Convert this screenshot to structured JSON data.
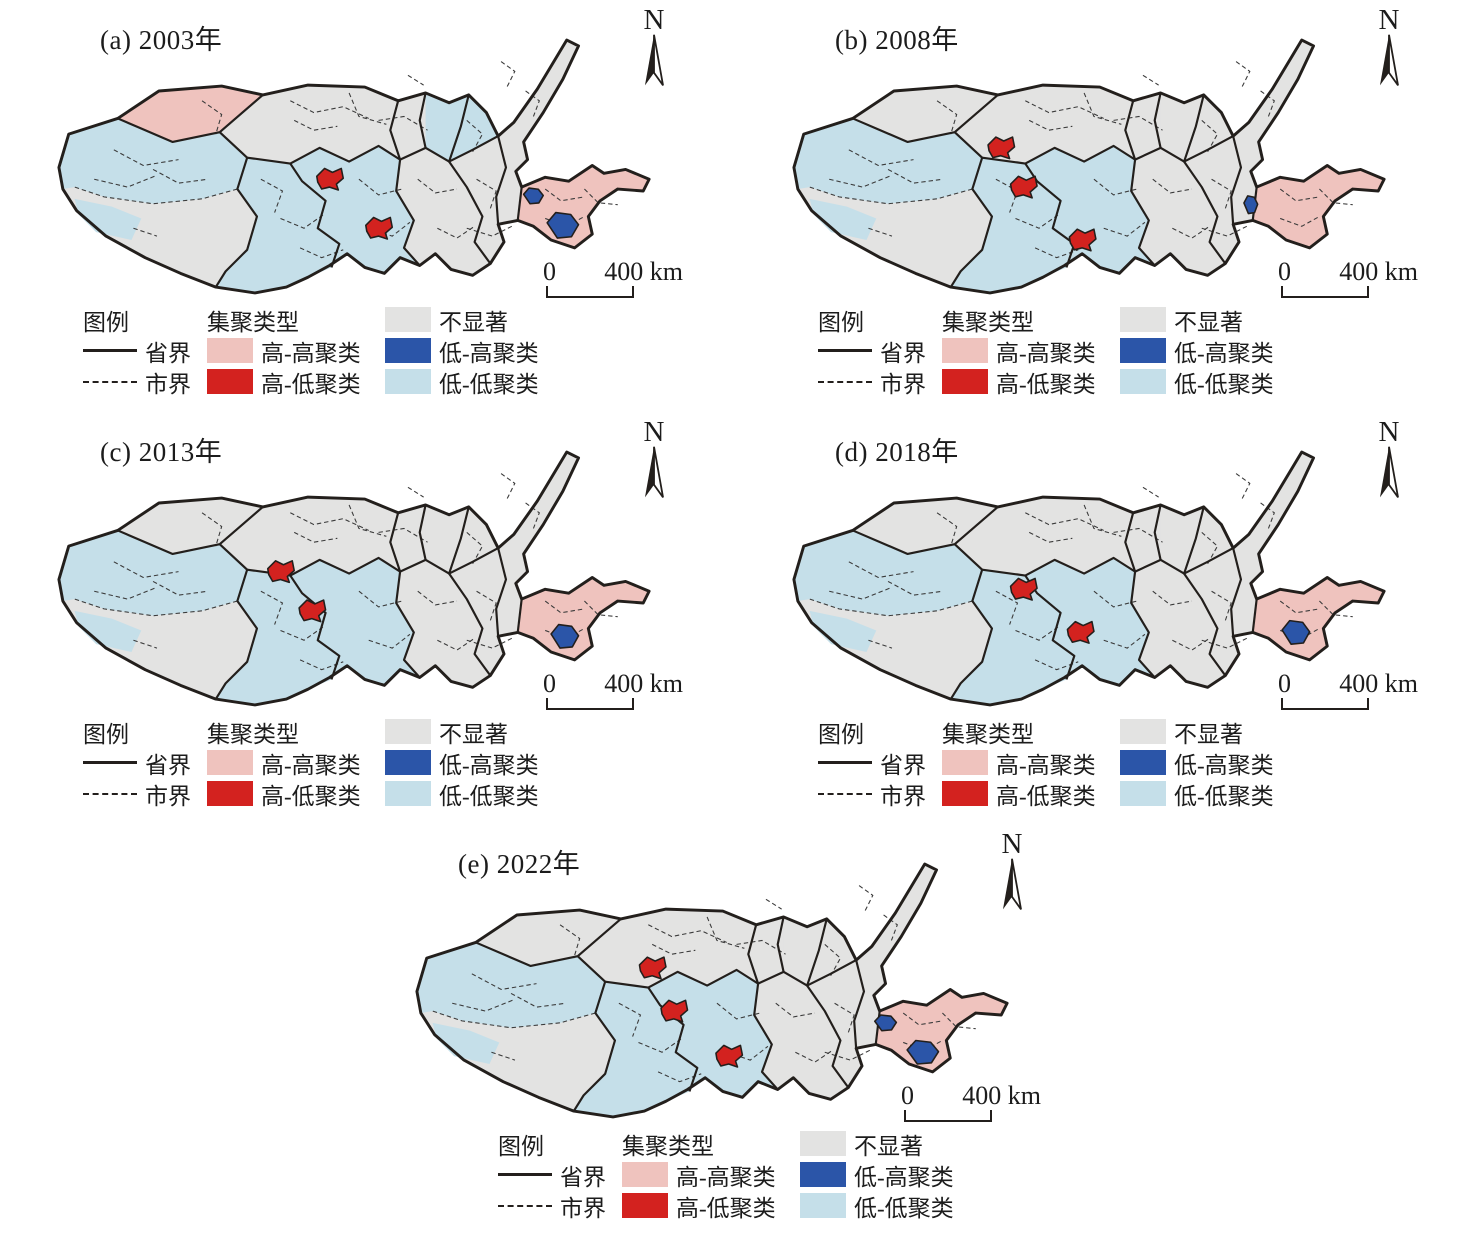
{
  "panels": [
    {
      "label": "(a) 2003年",
      "year": "2003"
    },
    {
      "label": "(b) 2008年",
      "year": "2008"
    },
    {
      "label": "(c) 2013年",
      "year": "2013"
    },
    {
      "label": "(d) 2018年",
      "year": "2018"
    },
    {
      "label": "(e) 2022年",
      "year": "2022"
    }
  ],
  "legend": {
    "title": "图例",
    "cluster_type_header": "集聚类型",
    "province_boundary": "省界",
    "city_boundary": "市界",
    "high_high": "高-高聚类",
    "high_low": "高-低聚类",
    "low_high": "低-高聚类",
    "low_low": "低-低聚类",
    "not_significant": "不显著"
  },
  "scale_bar": {
    "start": "0",
    "end": "400 km"
  },
  "north_arrow_label": "N",
  "colors": {
    "high_high": "#EFC3BE",
    "high_low": "#D3221F",
    "low_high": "#2B55A8",
    "low_low": "#C5DFE9",
    "not_significant": "#E3E3E2",
    "boundary": "#231F1C",
    "background": "#FFFFFF"
  },
  "map_data": {
    "description": "LISA cluster zones per panel; coordinates are in shared basin-map local units",
    "panels": [
      {
        "year": "2003",
        "northwest_zone": "high_high",
        "northeast_zone": "low_low",
        "high_low_patches": [
          [
            280,
            150
          ],
          [
            330,
            200
          ]
        ],
        "low_high_patches": [
          [
            488,
            167,
            10,
            8
          ],
          [
            518,
            197,
            16,
            13
          ]
        ]
      },
      {
        "year": "2008",
        "northwest_zone": "not_significant",
        "northeast_zone": "not_significant",
        "high_low_patches": [
          [
            215,
            118
          ],
          [
            238,
            158
          ],
          [
            298,
            212
          ]
        ],
        "low_high_patches": [
          [
            470,
            176,
            7,
            9
          ]
        ]
      },
      {
        "year": "2013",
        "northwest_zone": "not_significant",
        "northeast_zone": "not_significant",
        "high_low_patches": [
          [
            230,
            130
          ],
          [
            262,
            170
          ]
        ],
        "low_high_patches": [
          [
            520,
            196,
            14,
            12
          ]
        ]
      },
      {
        "year": "2018",
        "northwest_zone": "not_significant",
        "northeast_zone": "not_significant",
        "high_low_patches": [
          [
            238,
            148
          ],
          [
            296,
            192
          ]
        ],
        "low_high_patches": [
          [
            516,
            192,
            14,
            12
          ]
        ]
      },
      {
        "year": "2022",
        "northwest_zone": "not_significant",
        "northeast_zone": "not_significant",
        "high_low_patches": [
          [
            244,
            114
          ],
          [
            266,
            158
          ],
          [
            322,
            204
          ]
        ],
        "low_high_patches": [
          [
            482,
            170,
            11,
            8
          ],
          [
            520,
            200,
            16,
            12
          ]
        ]
      }
    ]
  }
}
